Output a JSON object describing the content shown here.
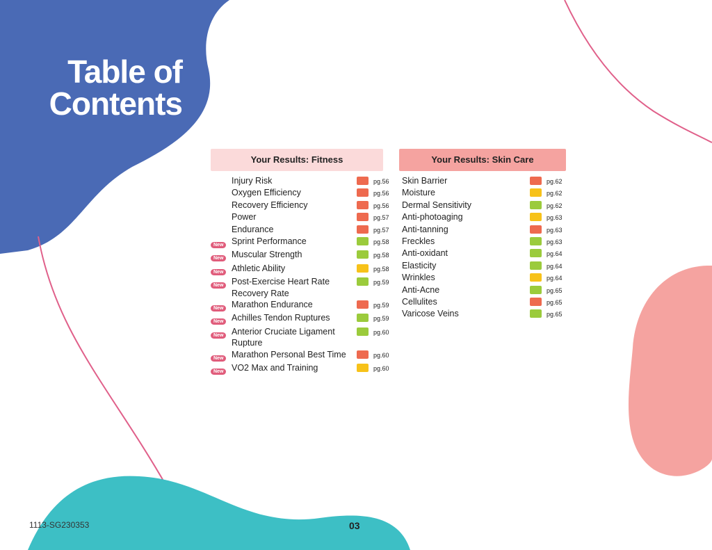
{
  "header": {
    "title_lines": [
      "Table of",
      "Contents"
    ]
  },
  "new_badge": "New",
  "sections": [
    {
      "heading": "Your Results: Fitness",
      "heading_color": "#fbdada",
      "items": [
        {
          "name": "Injury Risk",
          "page": "pg.56",
          "status_color": "#ee6a4f",
          "new": false
        },
        {
          "name": "Oxygen Efficiency",
          "page": "pg.56",
          "status_color": "#ee6a4f",
          "new": false
        },
        {
          "name": "Recovery Efficiency",
          "page": "pg.56",
          "status_color": "#ee6a4f",
          "new": false
        },
        {
          "name": "Power",
          "page": "pg.57",
          "status_color": "#ee6a4f",
          "new": false
        },
        {
          "name": "Endurance",
          "page": "pg.57",
          "status_color": "#ee6a4f",
          "new": false
        },
        {
          "name": "Sprint Performance",
          "page": "pg.58",
          "status_color": "#9bcb3c",
          "new": true
        },
        {
          "name": "Muscular Strength",
          "page": "pg.58",
          "status_color": "#9bcb3c",
          "new": true
        },
        {
          "name": "Athletic Ability",
          "page": "pg.58",
          "status_color": "#f7c21a",
          "new": true
        },
        {
          "name": "Post-Exercise Heart Rate Recovery Rate",
          "page": "pg.59",
          "status_color": "#9bcb3c",
          "new": true
        },
        {
          "name": "Marathon Endurance",
          "page": "pg.59",
          "status_color": "#ee6a4f",
          "new": true
        },
        {
          "name": "Achilles Tendon Ruptures",
          "page": "pg.59",
          "status_color": "#9bcb3c",
          "new": true
        },
        {
          "name": "Anterior Cruciate Ligament Rupture",
          "page": "pg.60",
          "status_color": "#9bcb3c",
          "new": true
        },
        {
          "name": "Marathon Personal Best Time",
          "page": "pg.60",
          "status_color": "#ee6a4f",
          "new": true
        },
        {
          "name": "VO2 Max and Training",
          "page": "pg.60",
          "status_color": "#f7c21a",
          "new": true
        }
      ]
    },
    {
      "heading": "Your Results: Skin Care",
      "heading_color": "#f5a3a0",
      "items": [
        {
          "name": "Skin Barrier",
          "page": "pg.62",
          "status_color": "#ee6a4f",
          "new": false
        },
        {
          "name": "Moisture",
          "page": "pg.62",
          "status_color": "#f7c21a",
          "new": false
        },
        {
          "name": "Dermal Sensitivity",
          "page": "pg.62",
          "status_color": "#9bcb3c",
          "new": false
        },
        {
          "name": "Anti-photoaging",
          "page": "pg.63",
          "status_color": "#f7c21a",
          "new": false
        },
        {
          "name": "Anti-tanning",
          "page": "pg.63",
          "status_color": "#ee6a4f",
          "new": false
        },
        {
          "name": "Freckles",
          "page": "pg.63",
          "status_color": "#9bcb3c",
          "new": false
        },
        {
          "name": "Anti-oxidant",
          "page": "pg.64",
          "status_color": "#9bcb3c",
          "new": false
        },
        {
          "name": "Elasticity",
          "page": "pg.64",
          "status_color": "#9bcb3c",
          "new": false
        },
        {
          "name": "Wrinkles",
          "page": "pg.64",
          "status_color": "#f7c21a",
          "new": false
        },
        {
          "name": "Anti-Acne",
          "page": "pg.65",
          "status_color": "#9bcb3c",
          "new": false
        },
        {
          "name": "Cellulites",
          "page": "pg.65",
          "status_color": "#ee6a4f",
          "new": false
        },
        {
          "name": "Varicose Veins",
          "page": "pg.65",
          "status_color": "#9bcb3c",
          "new": false
        }
      ]
    }
  ],
  "footer": {
    "code": "1113-SG230353",
    "page_number": "03"
  }
}
